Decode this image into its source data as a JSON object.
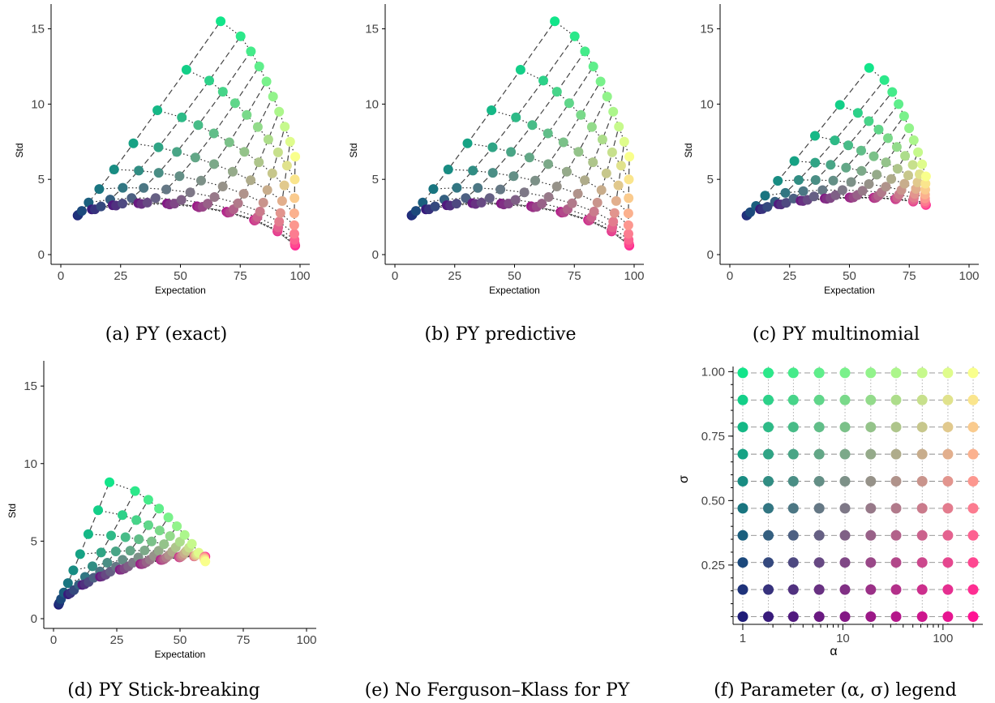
{
  "captions": {
    "a": "(a) PY (exact)",
    "b": "(b) PY predictive",
    "c": "(c) PY multinomial",
    "d": "(d) PY Stick-breaking",
    "e": "(e) No Ferguson–Klass for PY",
    "f": "(f) Parameter (α, σ) legend"
  },
  "axes": {
    "xlabel": "Expectation",
    "ylabel": "Std"
  },
  "chart_data": [
    {
      "id": "a",
      "type": "scatter",
      "xlabel": "Expectation",
      "ylabel": "Std",
      "xlim": [
        0,
        100
      ],
      "ylim": [
        0,
        16
      ],
      "xticks": [
        "0",
        "25",
        "50",
        "75",
        "100"
      ],
      "yticks": [
        "0",
        "5",
        "10",
        "15"
      ],
      "shape": {
        "sigma_line_corners": [
          [
            6,
            2.2
          ],
          [
            35,
            12.5
          ],
          [
            70,
            15.5
          ],
          [
            98,
            0.5
          ]
        ],
        "bottom_arc": [
          [
            7,
            2.6
          ],
          [
            20,
            4.0
          ],
          [
            50,
            4.8
          ],
          [
            80,
            3.8
          ],
          [
            98,
            0.6
          ]
        ],
        "x_max": 98
      }
    },
    {
      "id": "b",
      "type": "scatter",
      "xlabel": "Expectation",
      "ylabel": "Std",
      "xlim": [
        0,
        100
      ],
      "ylim": [
        0,
        16
      ],
      "xticks": [
        "0",
        "25",
        "50",
        "75",
        "100"
      ],
      "yticks": [
        "0",
        "5",
        "10",
        "15"
      ],
      "shape": {
        "sigma_line_corners": [
          [
            6,
            2.2
          ],
          [
            35,
            12.5
          ],
          [
            70,
            15.5
          ],
          [
            98,
            0.5
          ]
        ],
        "bottom_arc": [
          [
            7,
            2.6
          ],
          [
            20,
            4.0
          ],
          [
            50,
            4.8
          ],
          [
            80,
            3.8
          ],
          [
            98,
            0.6
          ]
        ],
        "x_max": 98
      }
    },
    {
      "id": "c",
      "type": "scatter",
      "xlabel": "Expectation",
      "ylabel": "Std",
      "xlim": [
        0,
        100
      ],
      "ylim": [
        0,
        16
      ],
      "xticks": [
        "0",
        "25",
        "50",
        "75",
        "100"
      ],
      "yticks": [
        "0",
        "5",
        "10",
        "15"
      ],
      "shape": {
        "sigma_line_corners": [
          [
            6,
            2.2
          ],
          [
            33,
            11.0
          ],
          [
            61,
            12.4
          ],
          [
            82,
            3.3
          ]
        ],
        "bottom_arc": [
          [
            7,
            2.6
          ],
          [
            20,
            4.0
          ],
          [
            45,
            4.6
          ],
          [
            70,
            4.1
          ],
          [
            82,
            3.3
          ]
        ],
        "x_max": 82
      }
    },
    {
      "id": "d",
      "type": "scatter",
      "xlabel": "Expectation",
      "ylabel": "Std",
      "xlim": [
        0,
        100
      ],
      "ylim": [
        0,
        16
      ],
      "xticks": [
        "0",
        "25",
        "50",
        "75",
        "100"
      ],
      "yticks": [
        "0",
        "5",
        "10",
        "15"
      ],
      "shape": {
        "sigma_line_corners": [
          [
            5,
            2.2
          ],
          [
            18,
            8.8
          ],
          [
            23,
            8.8
          ],
          [
            60,
            4.0
          ]
        ],
        "bottom_arc": [
          [
            2,
            0.9
          ],
          [
            10,
            3.0
          ],
          [
            25,
            4.0
          ],
          [
            50,
            4.3
          ],
          [
            60,
            4.0
          ]
        ],
        "x_max": 60
      }
    },
    {
      "id": "f",
      "type": "scatter",
      "xlabel": "α",
      "ylabel": "σ",
      "xscale": "log",
      "xlim": [
        0.8,
        250
      ],
      "ylim": [
        0.02,
        1.02
      ],
      "alpha": [
        1,
        1.8,
        3.2,
        5.8,
        10.5,
        19,
        34,
        62,
        112,
        200
      ],
      "sigma": [
        0.05,
        0.155,
        0.26,
        0.365,
        0.47,
        0.575,
        0.68,
        0.785,
        0.89,
        0.995
      ],
      "xticks": [
        "1",
        "10",
        "100"
      ],
      "yticks": [
        "0.25",
        "0.50",
        "0.75",
        "1.00"
      ],
      "ytick_values": [
        0.25,
        0.5,
        0.75,
        1.0
      ]
    }
  ],
  "colors": {
    "low_alpha_low_sigma": "#1f1c78",
    "low_alpha_high_sigma": "#12e58a",
    "high_alpha_low_sigma": "#ff1493",
    "high_alpha_high_sigma": "#f9ff8c",
    "axis": "#000000",
    "dotted_line": "#222222",
    "dashed_line": "#444444"
  }
}
